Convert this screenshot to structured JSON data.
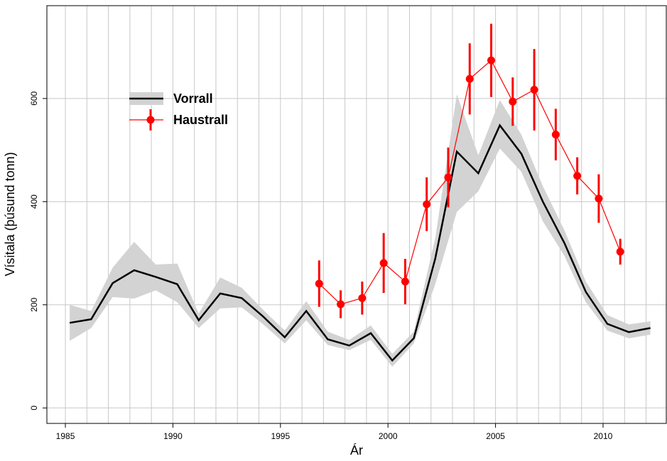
{
  "chart_data": {
    "type": "line",
    "y_label": "Vísitala (þúsund tonn)",
    "x_label": "Ár",
    "xlim": [
      1984.14,
      2012.94
    ],
    "ylim": [
      -30,
      780
    ],
    "xticks": [
      1985,
      1990,
      1995,
      2000,
      2005,
      2010
    ],
    "yticks": [
      0,
      200,
      400,
      600
    ],
    "xgridlines": [
      1985,
      1986,
      1987,
      1988,
      1989,
      1990,
      1991,
      1992,
      1993,
      1994,
      1995,
      1996,
      1997,
      1998,
      1999,
      2000,
      2001,
      2002,
      2003,
      2004,
      2005,
      2006,
      2007,
      2008,
      2009,
      2010,
      2011,
      2012
    ],
    "grid": true,
    "legend": "upper left",
    "series": [
      {
        "name": "Vorrall",
        "color": "#000000",
        "band_color": "#d3d3d3",
        "x": [
          1985.2,
          1986.2,
          1987.2,
          1988.2,
          1989.2,
          1990.2,
          1991.2,
          1992.2,
          1993.2,
          1994.2,
          1995.2,
          1996.2,
          1997.2,
          1998.2,
          1999.2,
          2000.2,
          2001.2,
          2002.2,
          2003.2,
          2004.2,
          2005.2,
          2006.2,
          2007.2,
          2008.2,
          2009.2,
          2010.2,
          2011.2,
          2012.2
        ],
        "values": [
          165,
          172,
          242,
          267,
          254,
          240,
          170,
          222,
          213,
          177,
          137,
          188,
          133,
          121,
          145,
          92,
          135,
          290,
          497,
          455,
          548,
          493,
          400,
          320,
          225,
          163,
          147,
          155
        ],
        "lower": [
          130,
          155,
          215,
          212,
          228,
          205,
          155,
          193,
          195,
          162,
          125,
          170,
          122,
          112,
          132,
          80,
          125,
          240,
          380,
          420,
          503,
          458,
          362,
          295,
          205,
          150,
          135,
          142
        ],
        "upper": [
          200,
          188,
          272,
          322,
          278,
          280,
          183,
          253,
          233,
          190,
          150,
          207,
          148,
          132,
          160,
          105,
          148,
          330,
          608,
          490,
          597,
          530,
          430,
          345,
          245,
          180,
          162,
          168
        ]
      },
      {
        "name": "Haustrall",
        "color": "#ff0000",
        "x": [
          1996.8,
          1997.8,
          1998.8,
          1999.8,
          2000.8,
          2001.8,
          2002.8,
          2003.8,
          2004.8,
          2005.8,
          2006.8,
          2007.8,
          2008.8,
          2009.8,
          2010.8
        ],
        "values": [
          241,
          201,
          213,
          281,
          245,
          395,
          447,
          638,
          674,
          594,
          617,
          530,
          450,
          406,
          303
        ],
        "errors": [
          45,
          27,
          32,
          58,
          44,
          52,
          58,
          69,
          71,
          47,
          79,
          50,
          36,
          47,
          25
        ]
      }
    ]
  }
}
